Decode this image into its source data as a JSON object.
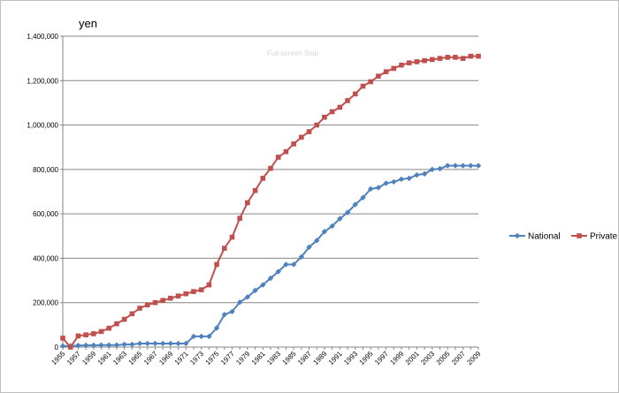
{
  "chart_data": {
    "type": "line",
    "title": "",
    "ylabel": "yen",
    "xlabel": "",
    "ylim": [
      0,
      1400000
    ],
    "yticks": [
      0,
      200000,
      400000,
      600000,
      800000,
      1000000,
      1200000,
      1400000
    ],
    "ytick_labels": [
      "0",
      "200,000",
      "400,000",
      "600,000",
      "800,000",
      "1,000,000",
      "1,200,000",
      "1,400,000"
    ],
    "xtick_labels": [
      "1955",
      "1957",
      "1959",
      "1961",
      "1963",
      "1965",
      "1967",
      "1969",
      "1971",
      "1973",
      "1975",
      "1977",
      "1979",
      "1981",
      "1983",
      "1985",
      "1987",
      "1989",
      "1991",
      "1993",
      "1995",
      "1997",
      "1999",
      "2001",
      "2003",
      "2005",
      "2007",
      "2009"
    ],
    "x": [
      1955,
      1956,
      1957,
      1958,
      1959,
      1960,
      1961,
      1962,
      1963,
      1964,
      1965,
      1966,
      1967,
      1968,
      1969,
      1970,
      1971,
      1972,
      1973,
      1974,
      1975,
      1976,
      1977,
      1978,
      1979,
      1980,
      1981,
      1982,
      1983,
      1984,
      1985,
      1986,
      1987,
      1988,
      1989,
      1990,
      1991,
      1992,
      1993,
      1994,
      1995,
      1996,
      1997,
      1998,
      1999,
      2000,
      2001,
      2002,
      2003,
      2004,
      2005,
      2006,
      2007,
      2008,
      2009
    ],
    "grid": true,
    "legend_position": "right",
    "series": [
      {
        "name": "National",
        "color": "#4f81bd",
        "marker": "diamond",
        "values": [
          5000,
          5000,
          7000,
          8000,
          8000,
          9000,
          9000,
          9000,
          12000,
          12000,
          16000,
          16000,
          16000,
          16000,
          16000,
          16000,
          16000,
          48000,
          48000,
          48000,
          86000,
          146000,
          160000,
          202000,
          225000,
          255000,
          280000,
          310000,
          340000,
          372000,
          372000,
          406000,
          450000,
          480000,
          520000,
          545000,
          578000,
          606000,
          642000,
          673000,
          712000,
          718000,
          738000,
          744000,
          756000,
          760000,
          775000,
          780000,
          800000,
          803000,
          817000,
          817000,
          817000,
          817000,
          817000
        ]
      },
      {
        "name": "Private",
        "color": "#c0504d",
        "marker": "square",
        "values": [
          40000,
          0,
          50000,
          55000,
          60000,
          70000,
          85000,
          105000,
          125000,
          150000,
          175000,
          190000,
          200000,
          210000,
          220000,
          230000,
          240000,
          250000,
          258000,
          280000,
          372000,
          445000,
          495000,
          580000,
          650000,
          705000,
          760000,
          805000,
          855000,
          880000,
          915000,
          945000,
          970000,
          1000000,
          1035000,
          1060000,
          1080000,
          1110000,
          1140000,
          1175000,
          1195000,
          1220000,
          1240000,
          1255000,
          1270000,
          1280000,
          1285000,
          1290000,
          1295000,
          1300000,
          1305000,
          1305000,
          1300000,
          1310000,
          1310000
        ]
      }
    ]
  },
  "overlay": {
    "snip_label": "Full-screen Snip"
  }
}
